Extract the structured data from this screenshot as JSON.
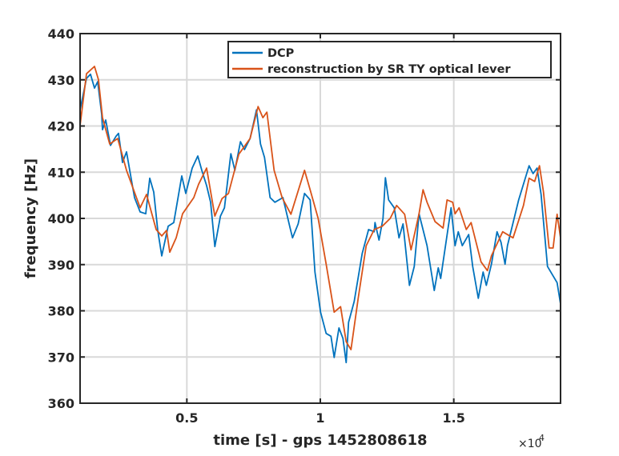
{
  "chart_data": {
    "type": "line",
    "title": "",
    "xlabel": "time [s] - gps 1452808618",
    "ylabel": "frequency [Hz]",
    "x_exponent_label": "×10",
    "x_exponent_power": "4",
    "xlim": [
      0.1,
      1.9
    ],
    "ylim": [
      360,
      440
    ],
    "xticks": [
      0.5,
      1,
      1.5
    ],
    "xtick_labels": [
      "0.5",
      "1",
      "1.5"
    ],
    "yticks": [
      360,
      370,
      380,
      390,
      400,
      410,
      420,
      430,
      440
    ],
    "ytick_labels": [
      "360",
      "370",
      "380",
      "390",
      "400",
      "410",
      "420",
      "430",
      "440"
    ],
    "grid": true,
    "legend_placement": "top-right",
    "series": [
      {
        "name": "DCP",
        "color": "#0072BD",
        "x": [
          0.1,
          0.124,
          0.139,
          0.154,
          0.166,
          0.181,
          0.184,
          0.196,
          0.214,
          0.235,
          0.244,
          0.259,
          0.274,
          0.286,
          0.304,
          0.325,
          0.346,
          0.361,
          0.376,
          0.391,
          0.406,
          0.43,
          0.451,
          0.481,
          0.496,
          0.52,
          0.541,
          0.556,
          0.574,
          0.589,
          0.605,
          0.626,
          0.641,
          0.665,
          0.68,
          0.701,
          0.716,
          0.737,
          0.761,
          0.776,
          0.791,
          0.812,
          0.83,
          0.86,
          0.887,
          0.896,
          0.917,
          0.941,
          0.962,
          0.98,
          1.001,
          1.022,
          1.04,
          1.052,
          1.07,
          1.085,
          1.097,
          1.106,
          1.127,
          1.157,
          1.181,
          1.202,
          1.205,
          1.22,
          1.235,
          1.244,
          1.256,
          1.277,
          1.295,
          1.31,
          1.334,
          1.352,
          1.37,
          1.4,
          1.427,
          1.442,
          1.451,
          1.49,
          1.505,
          1.517,
          1.532,
          1.556,
          1.571,
          1.592,
          1.61,
          1.622,
          1.641,
          1.662,
          1.677,
          1.692,
          1.701,
          1.743,
          1.782,
          1.797,
          1.812,
          1.827,
          1.851,
          1.887,
          1.9
        ],
        "y": [
          423.5,
          430.3,
          431.2,
          428.2,
          429.6,
          422.5,
          419.2,
          421.3,
          415.8,
          417.8,
          418.4,
          412.1,
          414.4,
          410.4,
          404.5,
          401.4,
          401.0,
          408.7,
          405.7,
          397.4,
          391.9,
          398.3,
          399.1,
          409.2,
          405.4,
          410.9,
          413.5,
          410.4,
          407.1,
          403.5,
          393.9,
          400.5,
          402.3,
          414.0,
          410.4,
          416.6,
          414.9,
          417.3,
          423.5,
          416.1,
          413.2,
          404.5,
          403.5,
          404.5,
          397.9,
          395.8,
          398.8,
          405.4,
          404.0,
          388.4,
          379.7,
          375.1,
          374.5,
          369.9,
          376.3,
          374.0,
          368.8,
          377.5,
          382.0,
          392.4,
          397.6,
          397.1,
          399.1,
          395.3,
          400.0,
          408.8,
          404.0,
          402.3,
          395.8,
          398.8,
          385.5,
          389.6,
          401.0,
          394.1,
          384.4,
          389.3,
          387.0,
          402.3,
          394.1,
          397.1,
          394.1,
          396.5,
          389.6,
          382.7,
          388.4,
          385.5,
          390.1,
          397.1,
          394.8,
          390.1,
          394.1,
          404.0,
          411.4,
          409.7,
          410.9,
          405.2,
          389.6,
          386.1,
          381.5
        ]
      },
      {
        "name": "reconstruction by SR TY optical lever",
        "color": "#D95319",
        "x": [
          0.1,
          0.124,
          0.154,
          0.169,
          0.184,
          0.211,
          0.241,
          0.274,
          0.325,
          0.349,
          0.385,
          0.406,
          0.424,
          0.436,
          0.46,
          0.484,
          0.526,
          0.544,
          0.574,
          0.605,
          0.632,
          0.656,
          0.695,
          0.737,
          0.767,
          0.785,
          0.8,
          0.827,
          0.857,
          0.89,
          0.941,
          0.962,
          0.992,
          1.022,
          1.052,
          1.076,
          1.097,
          1.115,
          1.142,
          1.172,
          1.202,
          1.232,
          1.262,
          1.286,
          1.316,
          1.34,
          1.37,
          1.385,
          1.4,
          1.43,
          1.46,
          1.475,
          1.496,
          1.505,
          1.52,
          1.547,
          1.565,
          1.602,
          1.626,
          1.641,
          1.683,
          1.722,
          1.761,
          1.782,
          1.803,
          1.821,
          1.836,
          1.857,
          1.872,
          1.887,
          1.9
        ],
        "y": [
          420.1,
          431.3,
          432.9,
          430.0,
          421.8,
          416.1,
          417.3,
          410.4,
          402.3,
          405.2,
          397.6,
          396.2,
          397.4,
          392.7,
          395.8,
          401.0,
          404.5,
          407.4,
          410.9,
          400.5,
          404.3,
          405.4,
          413.9,
          417.3,
          424.2,
          421.8,
          423.0,
          410.4,
          404.5,
          400.9,
          410.4,
          406.2,
          400.0,
          390.1,
          379.7,
          380.9,
          373.3,
          371.6,
          382.7,
          394.1,
          397.6,
          398.3,
          400.0,
          402.8,
          400.9,
          393.2,
          401.0,
          406.2,
          403.5,
          399.3,
          397.9,
          404.0,
          403.5,
          401.0,
          402.3,
          397.6,
          399.1,
          390.6,
          388.7,
          391.9,
          397.1,
          395.8,
          402.8,
          408.7,
          408.0,
          411.4,
          405.7,
          393.6,
          393.6,
          400.9,
          395.8
        ]
      }
    ]
  }
}
